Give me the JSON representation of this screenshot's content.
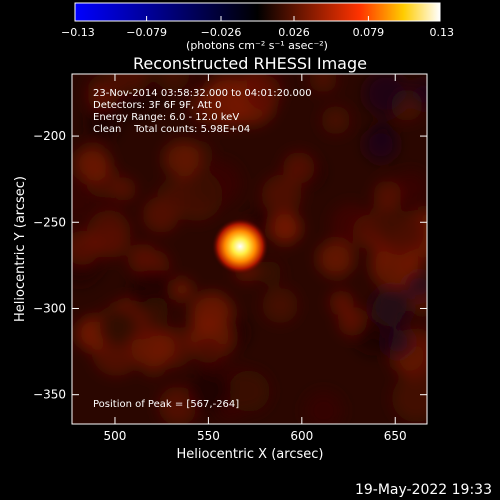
{
  "chart_data": {
    "type": "heatmap",
    "title": "Reconstructed RHESSI Image",
    "xlabel": "Heliocentric X (arcsec)",
    "ylabel": "Heliocentric Y (arcsec)",
    "xlim": [
      477,
      667
    ],
    "ylim": [
      -367,
      -164
    ],
    "x_ticks": [
      500,
      550,
      600,
      650
    ],
    "x_tick_labels": [
      "500",
      "550",
      "600",
      "650"
    ],
    "y_ticks": [
      -200,
      -250,
      -300,
      -350
    ],
    "y_tick_labels": [
      "−200",
      "−250",
      "−300",
      "−350"
    ],
    "colorbar": {
      "min": -0.13,
      "max": 0.13,
      "ticks": [
        -0.13,
        -0.079,
        -0.026,
        0.026,
        0.079,
        0.13
      ],
      "tick_labels": [
        "−0.13",
        "−0.079",
        "−0.026",
        "0.026",
        "0.079",
        "0.13"
      ],
      "unit_label": "(photons cm⁻² s⁻¹ asec⁻²)",
      "colormap": [
        "#0000ff",
        "#000000",
        "#ff0000",
        "#ffff00",
        "#ffffff"
      ]
    },
    "annotations": [
      "23-Nov-2014 03:58:32.000 to 04:01:20.000",
      "Detectors: 3F 6F 9F, Att 0",
      "Energy Range: 6.0 - 12.0 keV",
      "Clean    Total counts: 5.98E+04"
    ],
    "peak_label": "Position of Peak = [567,-264]",
    "peak": {
      "x": 567,
      "y": -264
    },
    "footer_timestamp": "19-May-2022 19:33"
  }
}
